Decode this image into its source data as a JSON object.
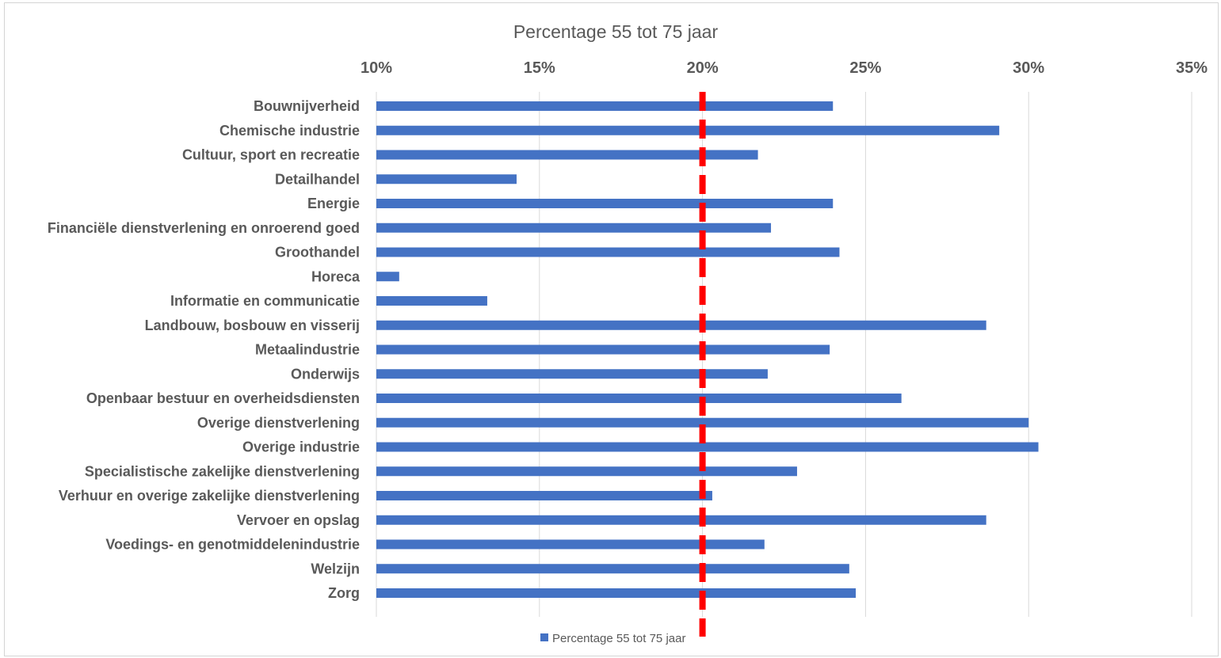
{
  "chart_data": {
    "type": "bar",
    "orientation": "horizontal",
    "title": "Percentage 55 tot 75 jaar",
    "xaxis_position": "top",
    "xlim": [
      0.1,
      0.35
    ],
    "ticks": [
      0.1,
      0.15,
      0.2,
      0.25,
      0.3,
      0.35
    ],
    "tick_labels": [
      "10%",
      "15%",
      "20%",
      "25%",
      "30%",
      "35%"
    ],
    "grid": true,
    "legend": "bottom",
    "categories": [
      "Bouwnijverheid",
      "Chemische industrie",
      "Cultuur, sport en recreatie",
      "Detailhandel",
      "Energie",
      "Financiële dienstverlening en onroerend goed",
      "Groothandel",
      "Horeca",
      "Informatie en communicatie",
      "Landbouw, bosbouw en visserij",
      "Metaalindustrie",
      "Onderwijs",
      "Openbaar bestuur en overheidsdiensten",
      "Overige dienstverlening",
      "Overige industrie",
      "Specialistische zakelijke dienstverlening",
      "Verhuur en overige zakelijke dienstverlening",
      "Vervoer en opslag",
      "Voedings- en genotmiddelenindustrie",
      "Welzijn",
      "Zorg"
    ],
    "series": [
      {
        "name": "Percentage 55 tot 75 jaar",
        "color": "#4472c4",
        "values": [
          0.24,
          0.291,
          0.217,
          0.143,
          0.24,
          0.221,
          0.242,
          0.107,
          0.134,
          0.287,
          0.239,
          0.22,
          0.261,
          0.3,
          0.303,
          0.229,
          0.203,
          0.287,
          0.219,
          0.245,
          0.247
        ]
      }
    ],
    "reference_line": {
      "value": 0.2,
      "color": "#ff0000",
      "style": "dashed"
    }
  }
}
